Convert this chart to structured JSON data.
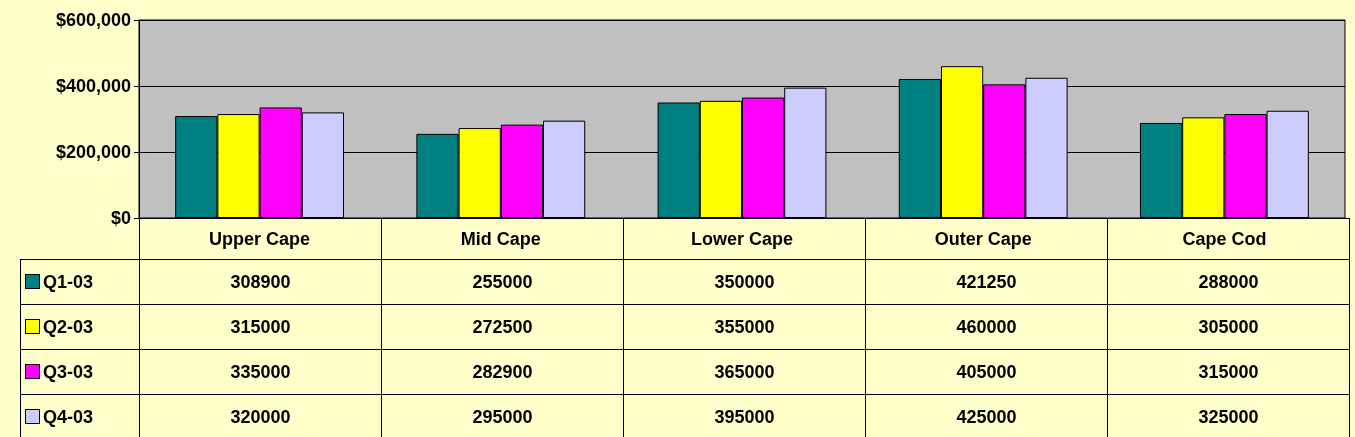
{
  "chart_data": {
    "type": "bar",
    "categories": [
      "Upper Cape",
      "Mid Cape",
      "Lower Cape",
      "Outer Cape",
      "Cape Cod"
    ],
    "series": [
      {
        "name": "Q1-03",
        "color": "#008080",
        "values": [
          308900,
          255000,
          350000,
          421250,
          288000
        ]
      },
      {
        "name": "Q2-03",
        "color": "#ffff00",
        "values": [
          315000,
          272500,
          355000,
          460000,
          305000
        ]
      },
      {
        "name": "Q3-03",
        "color": "#ff00ff",
        "values": [
          335000,
          282900,
          365000,
          405000,
          315000
        ]
      },
      {
        "name": "Q4-03",
        "color": "#ccccff",
        "values": [
          320000,
          295000,
          395000,
          425000,
          325000
        ]
      }
    ],
    "ylim": [
      0,
      600000
    ],
    "yticks": [
      {
        "value": 0,
        "label": "$0"
      },
      {
        "value": 200000,
        "label": "$200,000"
      },
      {
        "value": 400000,
        "label": "$400,000"
      },
      {
        "value": 600000,
        "label": "$600,000"
      }
    ],
    "grid": "y",
    "legend": "bottom left",
    "data_labels": true
  }
}
